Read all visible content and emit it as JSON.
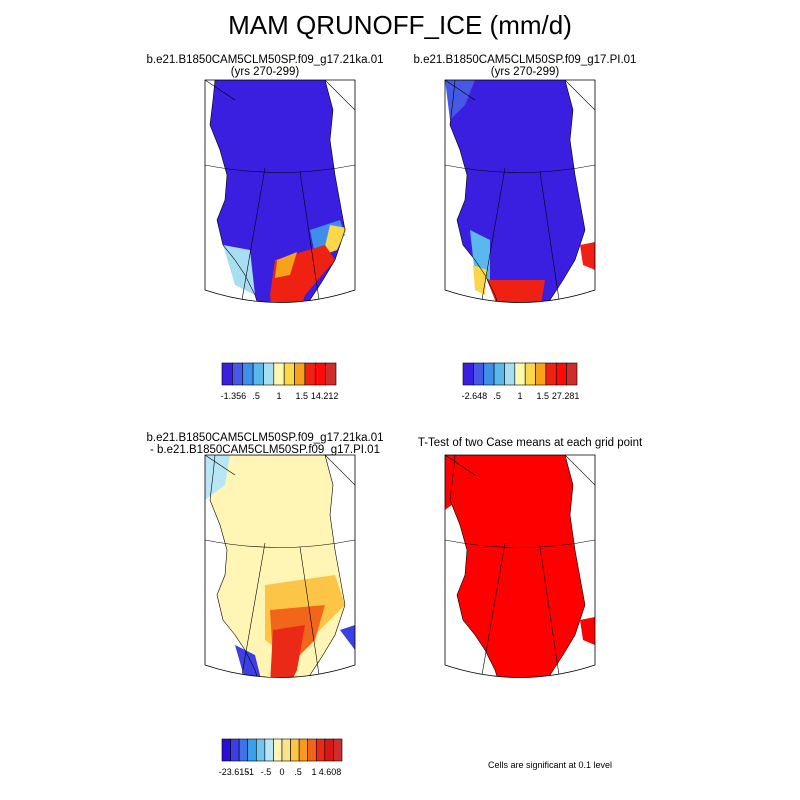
{
  "title": "MAM QRUNOFF_ICE (mm/d)",
  "panels": [
    {
      "id": "top-left",
      "title_lines": [
        "b.e21.B1850CAM5CLM50SP.f09_g17.21ka.01",
        "(yrs 270-299)"
      ],
      "palette": [
        "#3a1fe0",
        "#4659e6",
        "#3f8ee9",
        "#5ab8ee",
        "#a7def1",
        "#fff9b0",
        "#fdd74a",
        "#f8a21b",
        "#ef2113",
        "#ff0a0a",
        "#cf2c2c"
      ],
      "colorbar_labels": [
        "-1.356",
        ".5",
        "1",
        "1.5",
        "14.212"
      ],
      "description": "Greenland runoff ice field, mostly low values with high values on south-east coast"
    },
    {
      "id": "top-right",
      "title_lines": [
        "b.e21.B1850CAM5CLM50SP.f09_g17.PI.01",
        "(yrs 270-299)"
      ],
      "palette": [
        "#3a1fe0",
        "#4659e6",
        "#3f8ee9",
        "#5ab8ee",
        "#a7def1",
        "#fff9b0",
        "#fdd74a",
        "#f8a21b",
        "#ef2113",
        "#ff0a0a",
        "#cf2c2c"
      ],
      "colorbar_labels": [
        "-2.648",
        ".5",
        "1",
        "1.5",
        "27.281"
      ]
    },
    {
      "id": "bottom-left",
      "title_lines": [
        "b.e21.B1850CAM5CLM50SP.f09_g17.21ka.01",
        "- b.e21.B1850CAM5CLM50SP.f09_g17.PI.01"
      ],
      "palette": [
        "#2a0fd8",
        "#3d3ee3",
        "#3f74e7",
        "#3aa0ec",
        "#70c6f0",
        "#b9e6f4",
        "#fff6b6",
        "#fbe48c",
        "#fdc548",
        "#f99a1c",
        "#f1661a",
        "#ea2a16",
        "#d81814",
        "#cf2c2c"
      ],
      "colorbar_labels": [
        "-23.615",
        "-1",
        "-.5",
        "0",
        ".5",
        "1",
        "4.608"
      ]
    },
    {
      "id": "bottom-right",
      "title_lines": [
        "T-Test of two Case means at each grid point"
      ],
      "note": "Cells are significant at 0.1 level",
      "fill": "#ff0000"
    }
  ]
}
